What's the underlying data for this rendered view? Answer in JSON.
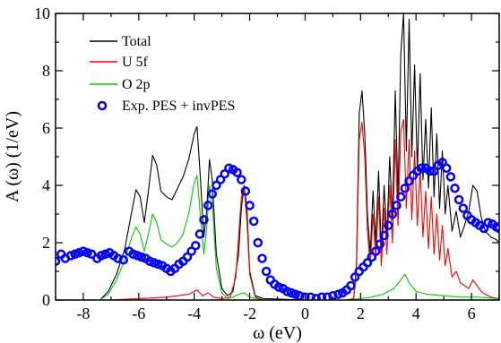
{
  "chart_data": {
    "type": "line",
    "xlabel": "ω (eV)",
    "ylabel": "A (ω) (1/eV)",
    "xlim": [
      -9,
      7
    ],
    "ylim": [
      0,
      10
    ],
    "xticks": [
      "-8",
      "-6",
      "-4",
      "-2",
      "0",
      "2",
      "4",
      "6"
    ],
    "yticks": [
      "0",
      "2",
      "4",
      "6",
      "8",
      "10"
    ],
    "xtick_values": [
      -8,
      -6,
      -4,
      -2,
      0,
      2,
      4,
      6
    ],
    "ytick_values": [
      0,
      2,
      4,
      6,
      8,
      10
    ],
    "grid": false,
    "legend_position": "top-left",
    "legend": [
      "Total",
      "U 5f",
      "O 2p",
      "Exp. PES + invPES"
    ],
    "series": [
      {
        "name": "Total",
        "style": "line",
        "color": "#000000",
        "points": [
          [
            -7.4,
            0
          ],
          [
            -7.1,
            0.3
          ],
          [
            -6.8,
            0.9
          ],
          [
            -6.5,
            1.8
          ],
          [
            -6.25,
            3.1
          ],
          [
            -6.1,
            3.85
          ],
          [
            -5.95,
            3.6
          ],
          [
            -5.8,
            2.7
          ],
          [
            -5.65,
            3.8
          ],
          [
            -5.5,
            5.05
          ],
          [
            -5.35,
            4.7
          ],
          [
            -5.2,
            3.8
          ],
          [
            -5.0,
            3.6
          ],
          [
            -4.8,
            3.5
          ],
          [
            -4.6,
            3.9
          ],
          [
            -4.4,
            4.3
          ],
          [
            -4.2,
            4.9
          ],
          [
            -4.0,
            5.8
          ],
          [
            -3.9,
            6.05
          ],
          [
            -3.8,
            4.6
          ],
          [
            -3.65,
            2.2
          ],
          [
            -3.55,
            3.1
          ],
          [
            -3.45,
            4.9
          ],
          [
            -3.35,
            4.2
          ],
          [
            -3.2,
            1.6
          ],
          [
            -3.0,
            0.4
          ],
          [
            -2.8,
            0.15
          ],
          [
            -2.6,
            0.3
          ],
          [
            -2.4,
            1.6
          ],
          [
            -2.3,
            3.2
          ],
          [
            -2.2,
            4.0
          ],
          [
            -2.1,
            3.2
          ],
          [
            -2.0,
            1.0
          ],
          [
            -1.8,
            0.15
          ],
          [
            -1.5,
            0.05
          ],
          [
            0,
            0
          ],
          [
            1.5,
            0
          ],
          [
            1.75,
            0.05
          ],
          [
            1.85,
            1.2
          ],
          [
            1.95,
            6.5
          ],
          [
            2.05,
            7.3
          ],
          [
            2.15,
            5.8
          ],
          [
            2.25,
            3.0
          ],
          [
            2.35,
            1.6
          ],
          [
            2.45,
            3.8
          ],
          [
            2.55,
            2.0
          ],
          [
            2.65,
            4.5
          ],
          [
            2.75,
            1.7
          ],
          [
            2.85,
            4.0
          ],
          [
            2.95,
            2.2
          ],
          [
            3.05,
            5.0
          ],
          [
            3.15,
            2.8
          ],
          [
            3.25,
            7.3
          ],
          [
            3.35,
            3.6
          ],
          [
            3.45,
            8.6
          ],
          [
            3.55,
            10.0
          ],
          [
            3.65,
            5.2
          ],
          [
            3.75,
            9.8
          ],
          [
            3.85,
            5.0
          ],
          [
            3.95,
            8.2
          ],
          [
            4.05,
            4.5
          ],
          [
            4.15,
            7.9
          ],
          [
            4.25,
            4.2
          ],
          [
            4.35,
            6.3
          ],
          [
            4.45,
            3.9
          ],
          [
            4.55,
            6.7
          ],
          [
            4.65,
            3.6
          ],
          [
            4.75,
            5.8
          ],
          [
            4.85,
            3.2
          ],
          [
            4.95,
            5.2
          ],
          [
            5.05,
            3.0
          ],
          [
            5.15,
            4.0
          ],
          [
            5.3,
            2.4
          ],
          [
            5.45,
            3.1
          ],
          [
            5.6,
            2.2
          ],
          [
            5.75,
            2.6
          ],
          [
            5.9,
            3.1
          ],
          [
            6.05,
            4.0
          ],
          [
            6.2,
            3.8
          ],
          [
            6.35,
            2.9
          ],
          [
            6.5,
            2.4
          ],
          [
            6.7,
            2.2
          ],
          [
            6.9,
            2.1
          ],
          [
            7.0,
            2.0
          ]
        ]
      },
      {
        "name": "U 5f",
        "style": "line",
        "color": "#ff0000",
        "points": [
          [
            -9,
            0
          ],
          [
            -7.0,
            0
          ],
          [
            -6.0,
            0.05
          ],
          [
            -5.0,
            0.1
          ],
          [
            -4.6,
            0.15
          ],
          [
            -4.2,
            0.2
          ],
          [
            -3.9,
            0.35
          ],
          [
            -3.7,
            0.15
          ],
          [
            -3.5,
            0.25
          ],
          [
            -3.3,
            0.1
          ],
          [
            -3.0,
            0.05
          ],
          [
            -2.7,
            0.1
          ],
          [
            -2.5,
            0.8
          ],
          [
            -2.4,
            2.2
          ],
          [
            -2.3,
            3.6
          ],
          [
            -2.2,
            3.95
          ],
          [
            -2.1,
            2.8
          ],
          [
            -2.0,
            0.9
          ],
          [
            -1.8,
            0.1
          ],
          [
            -1.5,
            0
          ],
          [
            1.5,
            0
          ],
          [
            1.75,
            0.05
          ],
          [
            1.85,
            1.0
          ],
          [
            1.95,
            5.6
          ],
          [
            2.05,
            6.2
          ],
          [
            2.15,
            5.0
          ],
          [
            2.25,
            2.4
          ],
          [
            2.35,
            1.2
          ],
          [
            2.45,
            3.0
          ],
          [
            2.55,
            1.4
          ],
          [
            2.65,
            3.6
          ],
          [
            2.75,
            1.2
          ],
          [
            2.85,
            3.2
          ],
          [
            2.95,
            1.6
          ],
          [
            3.05,
            4.0
          ],
          [
            3.15,
            2.0
          ],
          [
            3.25,
            5.6
          ],
          [
            3.35,
            2.6
          ],
          [
            3.45,
            5.9
          ],
          [
            3.55,
            6.3
          ],
          [
            3.65,
            3.2
          ],
          [
            3.75,
            5.6
          ],
          [
            3.85,
            2.8
          ],
          [
            3.95,
            5.2
          ],
          [
            4.05,
            2.6
          ],
          [
            4.15,
            4.6
          ],
          [
            4.25,
            2.2
          ],
          [
            4.35,
            3.8
          ],
          [
            4.45,
            1.8
          ],
          [
            4.55,
            3.6
          ],
          [
            4.65,
            1.6
          ],
          [
            4.75,
            3.0
          ],
          [
            4.85,
            1.4
          ],
          [
            4.95,
            2.6
          ],
          [
            5.05,
            1.2
          ],
          [
            5.15,
            1.8
          ],
          [
            5.3,
            0.8
          ],
          [
            5.45,
            1.0
          ],
          [
            5.6,
            0.6
          ],
          [
            5.75,
            0.5
          ],
          [
            5.9,
            0.4
          ],
          [
            6.05,
            0.7
          ],
          [
            6.2,
            0.5
          ],
          [
            6.35,
            0.3
          ],
          [
            6.5,
            0.2
          ],
          [
            6.7,
            0.1
          ],
          [
            7.0,
            0.05
          ]
        ]
      },
      {
        "name": "O 2p",
        "style": "line",
        "color": "#00cc00",
        "points": [
          [
            -7.4,
            0
          ],
          [
            -7.1,
            0.2
          ],
          [
            -6.8,
            0.7
          ],
          [
            -6.5,
            1.4
          ],
          [
            -6.25,
            2.2
          ],
          [
            -6.1,
            2.55
          ],
          [
            -5.95,
            2.3
          ],
          [
            -5.8,
            1.7
          ],
          [
            -5.65,
            2.3
          ],
          [
            -5.5,
            3.0
          ],
          [
            -5.35,
            2.7
          ],
          [
            -5.2,
            2.1
          ],
          [
            -5.0,
            1.95
          ],
          [
            -4.8,
            1.85
          ],
          [
            -4.6,
            2.0
          ],
          [
            -4.4,
            2.3
          ],
          [
            -4.2,
            3.0
          ],
          [
            -4.0,
            4.1
          ],
          [
            -3.9,
            4.35
          ],
          [
            -3.8,
            3.2
          ],
          [
            -3.65,
            1.6
          ],
          [
            -3.55,
            2.5
          ],
          [
            -3.45,
            4.0
          ],
          [
            -3.35,
            3.4
          ],
          [
            -3.2,
            1.1
          ],
          [
            -3.0,
            0.25
          ],
          [
            -2.8,
            0.05
          ],
          [
            -2.6,
            0.1
          ],
          [
            -2.4,
            0.2
          ],
          [
            -2.2,
            0.25
          ],
          [
            -2.0,
            0.1
          ],
          [
            -1.5,
            0
          ],
          [
            1.5,
            0
          ],
          [
            2.0,
            0.05
          ],
          [
            2.4,
            0.1
          ],
          [
            2.8,
            0.2
          ],
          [
            3.2,
            0.4
          ],
          [
            3.45,
            0.7
          ],
          [
            3.6,
            0.9
          ],
          [
            3.75,
            0.6
          ],
          [
            4.0,
            0.3
          ],
          [
            4.4,
            0.2
          ],
          [
            5.0,
            0.15
          ],
          [
            5.6,
            0.1
          ],
          [
            6.2,
            0.1
          ],
          [
            7.0,
            0.05
          ]
        ]
      },
      {
        "name": "Exp. PES + invPES",
        "style": "markers",
        "color": "#0000ff",
        "points": [
          [
            -9.0,
            1.35
          ],
          [
            -8.8,
            1.6
          ],
          [
            -8.65,
            1.45
          ],
          [
            -8.45,
            1.55
          ],
          [
            -8.3,
            1.6
          ],
          [
            -8.15,
            1.65
          ],
          [
            -8.0,
            1.7
          ],
          [
            -7.85,
            1.65
          ],
          [
            -7.7,
            1.6
          ],
          [
            -7.5,
            1.45
          ],
          [
            -7.35,
            1.55
          ],
          [
            -7.2,
            1.6
          ],
          [
            -7.05,
            1.65
          ],
          [
            -6.9,
            1.55
          ],
          [
            -6.75,
            1.45
          ],
          [
            -6.55,
            1.4
          ],
          [
            -6.35,
            1.7
          ],
          [
            -6.2,
            1.6
          ],
          [
            -6.05,
            1.55
          ],
          [
            -5.9,
            1.5
          ],
          [
            -5.75,
            1.45
          ],
          [
            -5.6,
            1.35
          ],
          [
            -5.45,
            1.3
          ],
          [
            -5.3,
            1.25
          ],
          [
            -5.15,
            1.2
          ],
          [
            -5.0,
            1.1
          ],
          [
            -4.85,
            1.0
          ],
          [
            -4.7,
            1.1
          ],
          [
            -4.55,
            1.25
          ],
          [
            -4.4,
            1.35
          ],
          [
            -4.25,
            1.5
          ],
          [
            -4.1,
            1.7
          ],
          [
            -3.95,
            1.9
          ],
          [
            -3.8,
            2.3
          ],
          [
            -3.65,
            2.8
          ],
          [
            -3.5,
            3.3
          ],
          [
            -3.35,
            3.7
          ],
          [
            -3.2,
            4.0
          ],
          [
            -3.05,
            4.2
          ],
          [
            -2.9,
            4.4
          ],
          [
            -2.75,
            4.6
          ],
          [
            -2.6,
            4.55
          ],
          [
            -2.45,
            4.45
          ],
          [
            -2.3,
            4.2
          ],
          [
            -2.15,
            3.8
          ],
          [
            -2.0,
            3.3
          ],
          [
            -1.85,
            2.75
          ],
          [
            -1.7,
            2.0
          ],
          [
            -1.55,
            1.45
          ],
          [
            -1.4,
            1.0
          ],
          [
            -1.25,
            0.7
          ],
          [
            -1.1,
            0.55
          ],
          [
            -0.95,
            0.45
          ],
          [
            -0.8,
            0.4
          ],
          [
            -0.65,
            0.3
          ],
          [
            -0.5,
            0.25
          ],
          [
            -0.35,
            0.2
          ],
          [
            -0.2,
            0.15
          ],
          [
            0.0,
            0.1
          ],
          [
            0.2,
            0.1
          ],
          [
            0.4,
            0.05
          ],
          [
            0.6,
            0.1
          ],
          [
            0.8,
            0.1
          ],
          [
            1.0,
            0.15
          ],
          [
            1.2,
            0.2
          ],
          [
            1.35,
            0.25
          ],
          [
            1.5,
            0.35
          ],
          [
            1.65,
            0.5
          ],
          [
            1.8,
            0.8
          ],
          [
            1.95,
            1.0
          ],
          [
            2.1,
            1.15
          ],
          [
            2.25,
            1.3
          ],
          [
            2.4,
            1.5
          ],
          [
            2.55,
            1.7
          ],
          [
            2.7,
            1.95
          ],
          [
            2.85,
            2.25
          ],
          [
            3.0,
            2.6
          ],
          [
            3.15,
            3.0
          ],
          [
            3.3,
            3.3
          ],
          [
            3.45,
            3.6
          ],
          [
            3.6,
            3.9
          ],
          [
            3.75,
            4.15
          ],
          [
            3.9,
            4.35
          ],
          [
            4.05,
            4.5
          ],
          [
            4.2,
            4.6
          ],
          [
            4.35,
            4.6
          ],
          [
            4.5,
            4.5
          ],
          [
            4.65,
            4.5
          ],
          [
            4.8,
            4.7
          ],
          [
            4.95,
            4.8
          ],
          [
            5.1,
            4.6
          ],
          [
            5.25,
            4.3
          ],
          [
            5.4,
            3.9
          ],
          [
            5.55,
            3.5
          ],
          [
            5.7,
            3.2
          ],
          [
            5.85,
            2.95
          ],
          [
            6.0,
            2.8
          ],
          [
            6.15,
            2.7
          ],
          [
            6.3,
            2.6
          ],
          [
            6.45,
            2.5
          ],
          [
            6.6,
            2.7
          ],
          [
            6.75,
            2.65
          ],
          [
            6.9,
            2.55
          ],
          [
            7.0,
            2.5
          ]
        ]
      }
    ]
  }
}
